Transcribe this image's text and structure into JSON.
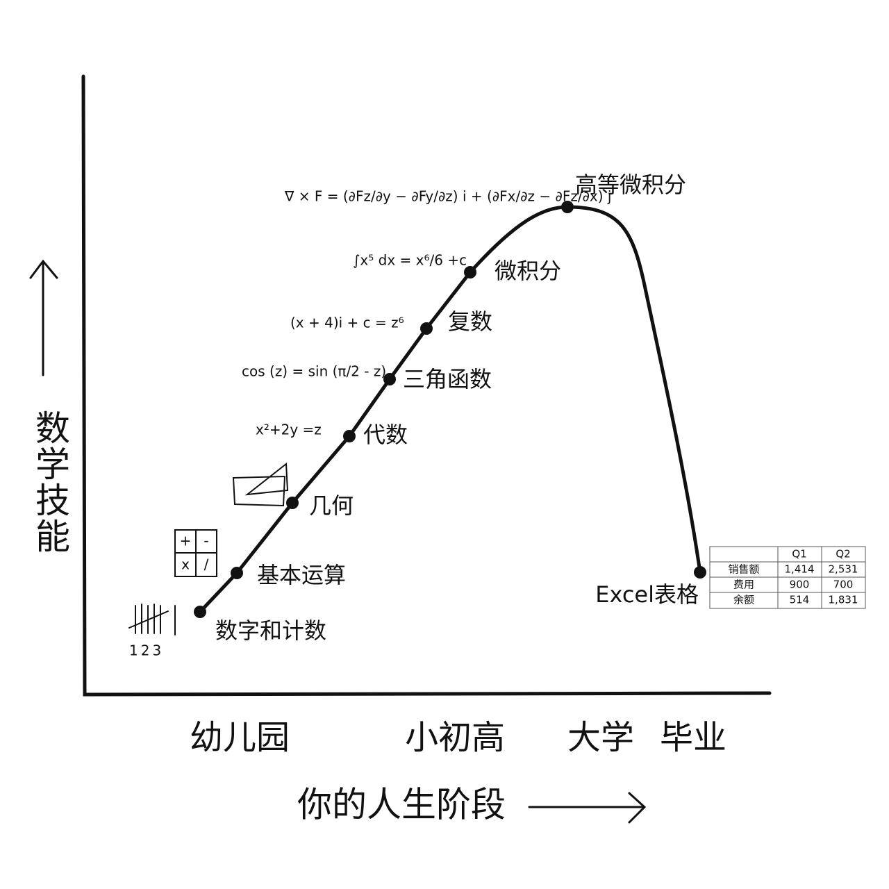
{
  "axes": {
    "y_label": "数学技能",
    "x_label": "你的人生阶段",
    "stages": [
      "幼儿园",
      "小初高",
      "大学",
      "毕业"
    ]
  },
  "nodes": [
    {
      "label": "数字和计数",
      "note": "123"
    },
    {
      "label": "基本运算",
      "ops": [
        "+",
        "-",
        "x",
        "/"
      ]
    },
    {
      "label": "几何"
    },
    {
      "label": "代数",
      "formula": "x²+2y =z"
    },
    {
      "label": "三角函数",
      "formula": "cos (z) = sin (π/2 - z)"
    },
    {
      "label": "复数",
      "formula": "(x + 4)i + c = z⁶"
    },
    {
      "label": "微积分",
      "formula": "∫x⁵ dx = x⁶/6 +c"
    },
    {
      "label": "高等微积分",
      "formula": "∇ × F = (∂Fz/∂y − ∂Fy/∂z) i + (∂Fx/∂z − ∂Fz/∂x) j"
    },
    {
      "label": "Excel表格"
    }
  ],
  "table": {
    "header": [
      "Q1",
      "Q2"
    ],
    "rows": [
      [
        "销售额",
        "1,414",
        "2,531"
      ],
      [
        "费用",
        "900",
        "700"
      ],
      [
        "余额",
        "514",
        "1,831"
      ]
    ]
  }
}
